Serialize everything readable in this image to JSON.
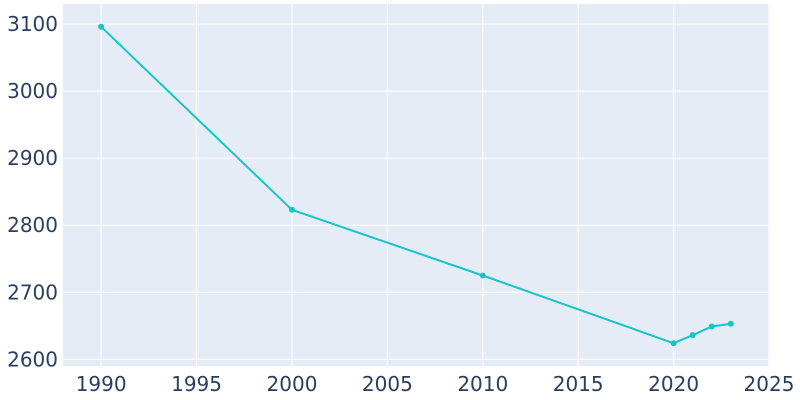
{
  "chart_data": {
    "type": "line",
    "title": "",
    "xlabel": "",
    "ylabel": "",
    "x": [
      1990,
      2000,
      2010,
      2020,
      2021,
      2022,
      2023
    ],
    "series": [
      {
        "values": [
          3096,
          2823,
          2725,
          2624,
          2636,
          2649,
          2653
        ]
      }
    ],
    "xlim": [
      1988,
      2025
    ],
    "ylim": [
      2590,
      3130
    ],
    "xticks": [
      1990,
      1995,
      2000,
      2005,
      2010,
      2015,
      2020,
      2025
    ],
    "yticks": [
      2600,
      2700,
      2800,
      2900,
      3000,
      3100
    ],
    "xtick_labels": [
      "1990",
      "1995",
      "2000",
      "2005",
      "2010",
      "2015",
      "2020",
      "2025"
    ],
    "ytick_labels": [
      "2600",
      "2700",
      "2800",
      "2900",
      "3000",
      "3100"
    ],
    "grid": true,
    "legend": "none",
    "colors": {
      "plot_background": "#e5ecf6",
      "grid": "#ffffff",
      "line": "#17c5c8",
      "tick_text": "#2a3f5f"
    }
  }
}
